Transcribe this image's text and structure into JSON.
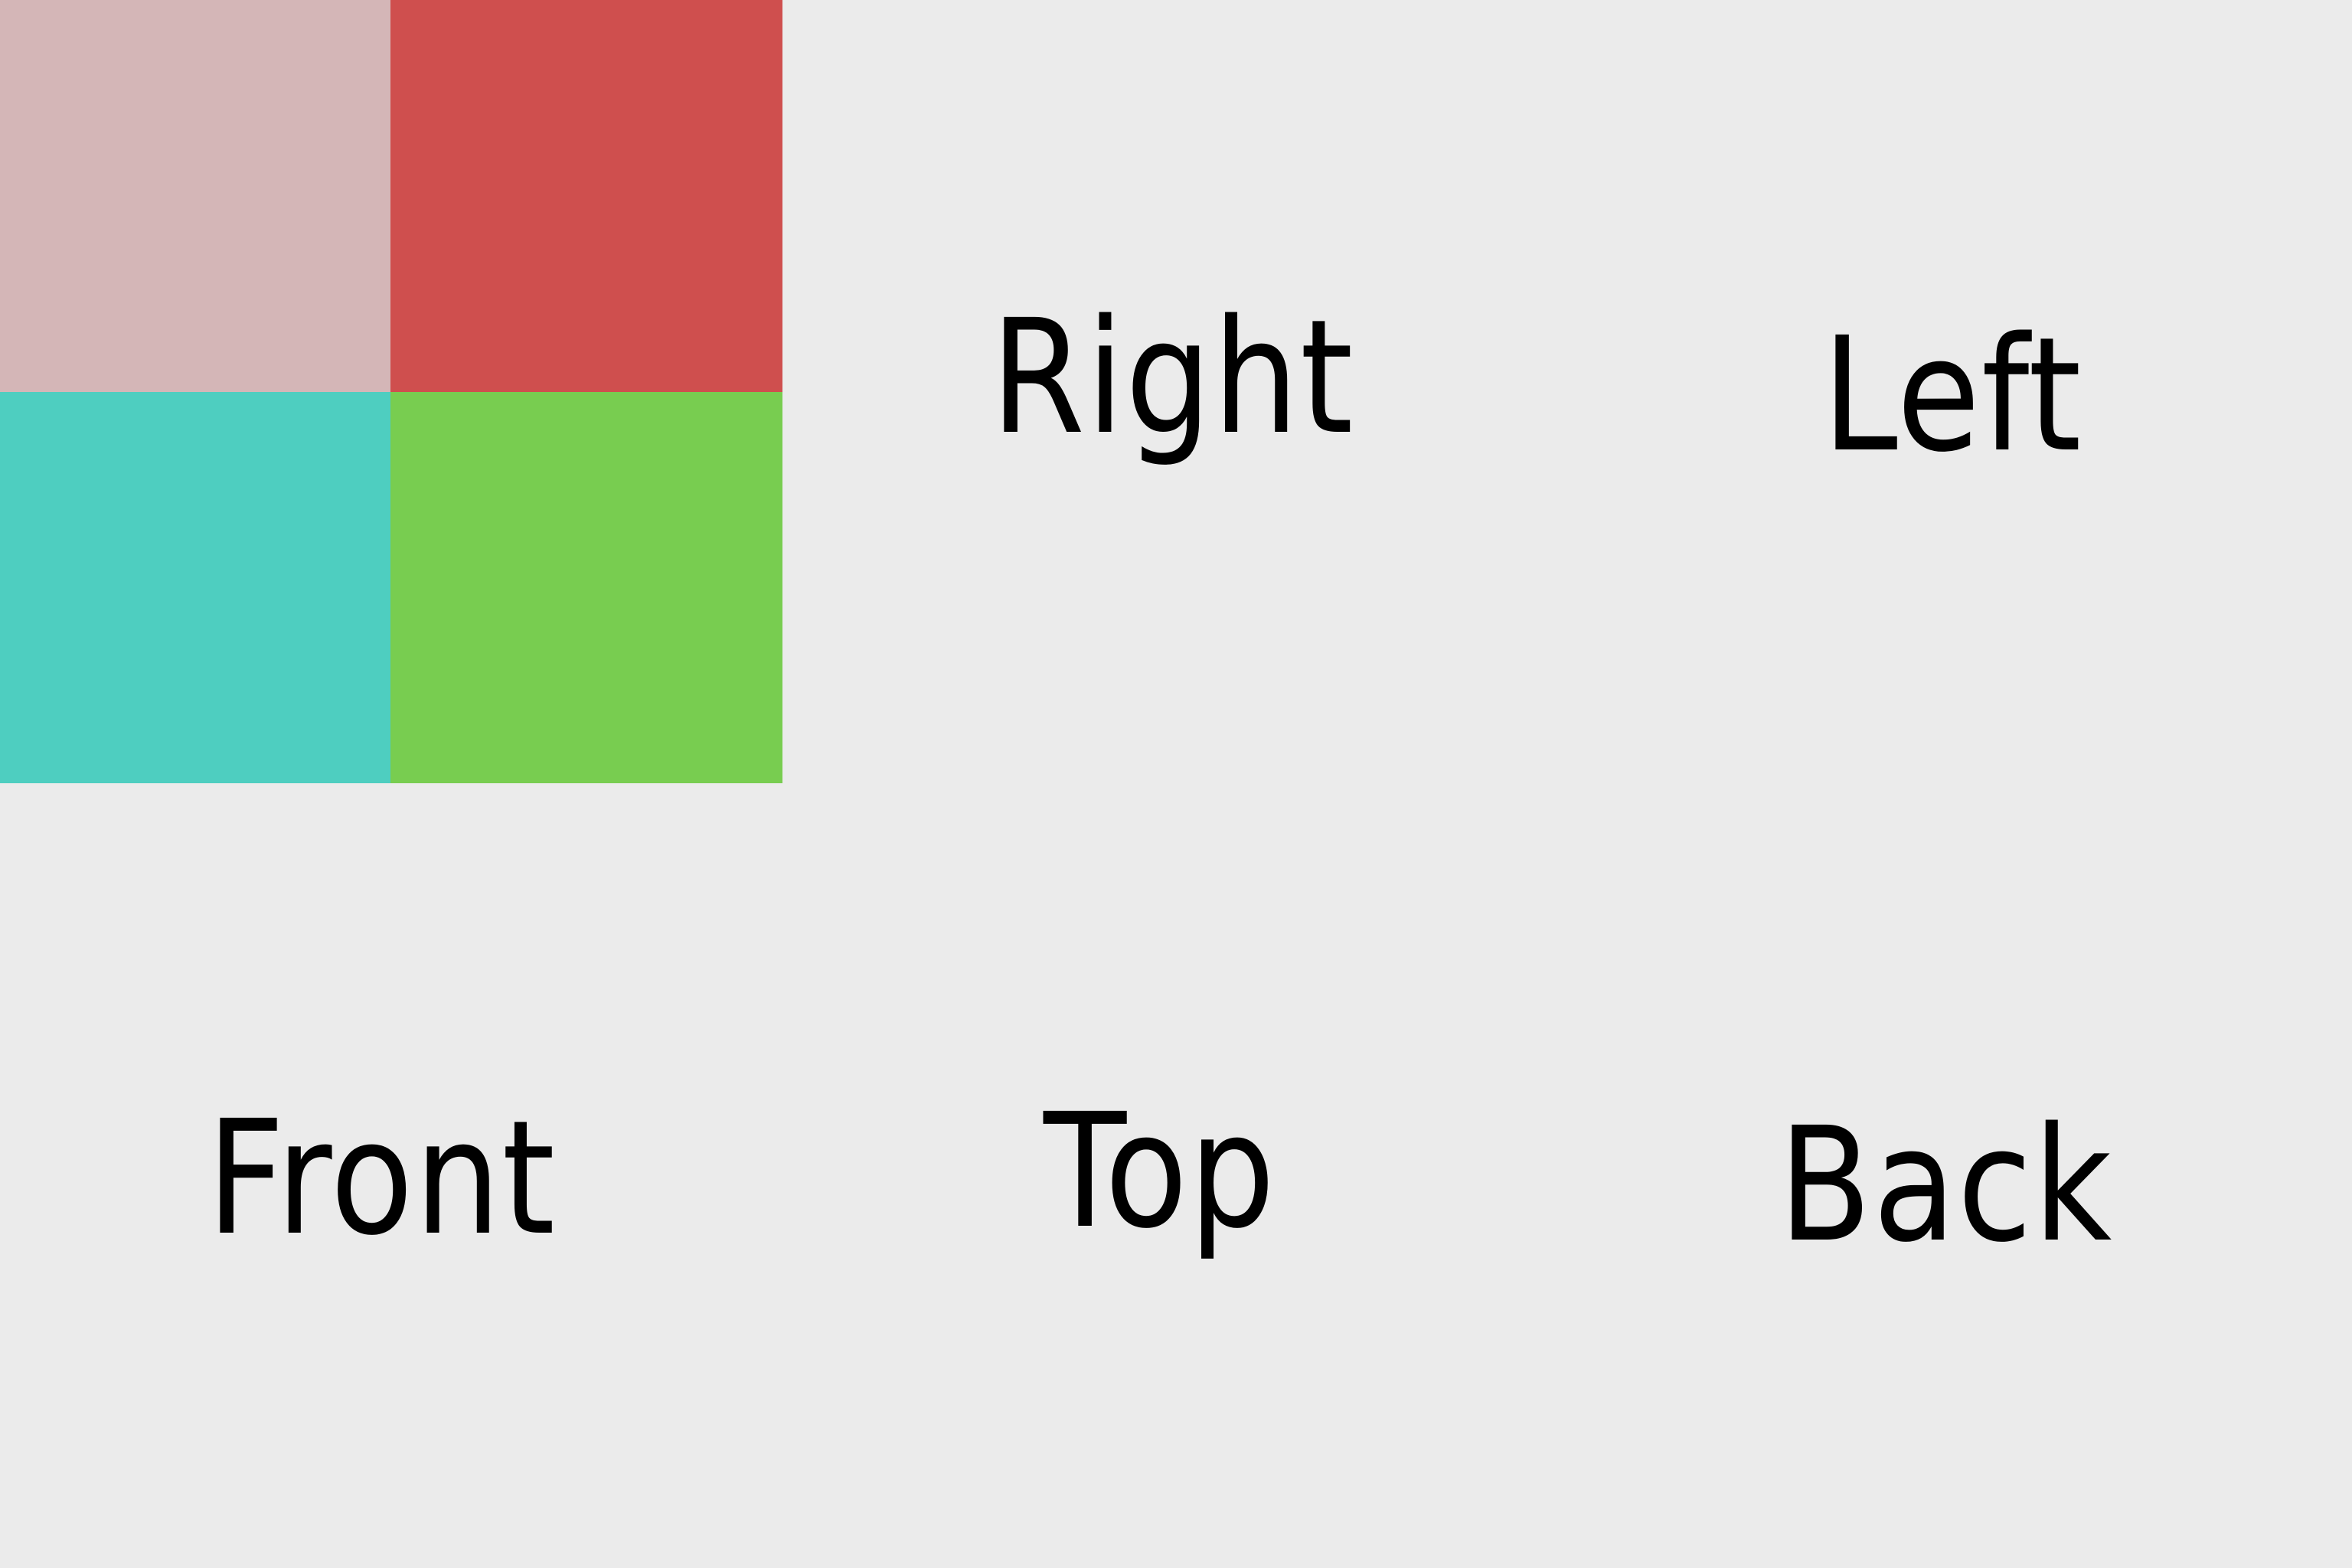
{
  "swatches": {
    "top_left": {
      "color": "#d4b6b7"
    },
    "top_right": {
      "color": "#cf4f4e"
    },
    "bottom_left": {
      "color": "#4ecec0"
    },
    "bottom_right": {
      "color": "#78cd50"
    }
  },
  "labels": {
    "right": "Right",
    "left": "Left",
    "front": "Front",
    "top": "Top",
    "back": "Back"
  },
  "colors": {
    "background": "#ebebeb",
    "text": "#000000"
  }
}
